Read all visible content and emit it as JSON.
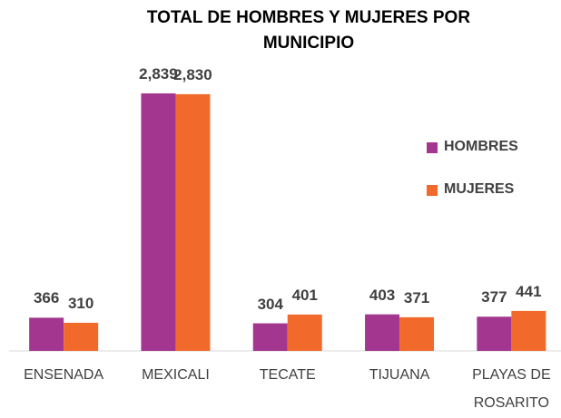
{
  "chart_data": {
    "type": "bar",
    "title": "TOTAL DE HOMBRES Y MUJERES POR MUNICIPIO",
    "categories": [
      "ENSENADA",
      "MEXICALI",
      "TECATE",
      "TIJUANA",
      "PLAYAS DE ROSARITO"
    ],
    "series": [
      {
        "name": "HOMBRES",
        "color": "#a3378f",
        "values": [
          366,
          2839,
          304,
          403,
          377
        ],
        "value_labels": [
          "366",
          "2,839",
          "304",
          "403",
          "377"
        ]
      },
      {
        "name": "MUJERES",
        "color": "#f26a2b",
        "values": [
          310,
          2830,
          401,
          371,
          441
        ],
        "value_labels": [
          "310",
          "2,830",
          "401",
          "371",
          "441"
        ]
      }
    ],
    "legend": "right"
  }
}
